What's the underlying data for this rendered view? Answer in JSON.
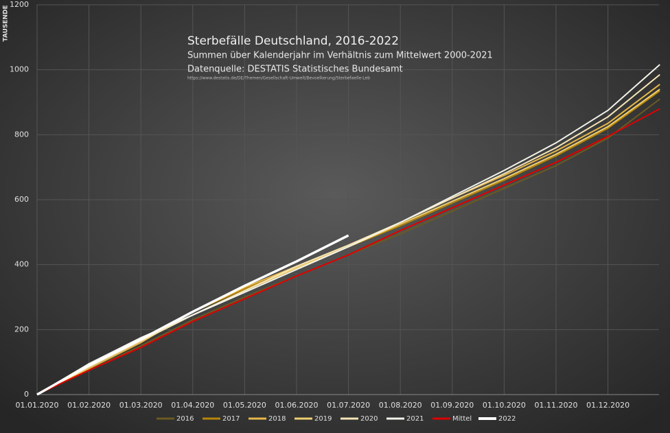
{
  "chart_data": {
    "type": "line",
    "title": "Sterbefälle  Deutschland,  2016-2022",
    "subtitle": "Summen  über  Kalenderjahr  im  Verhältnis  zum  Mittelwert  2000-2021",
    "source": "Datenquelle: DESTATIS  Statistisches  Bundesamt",
    "url": "https://www.destatis.de/DE/Themen/Gesellschaft-Umwelt/Bevoelkerung/Sterbefaelle-Leb",
    "y_label": "TAUSENDE",
    "categories": [
      "01.01.2020",
      "01.02.2020",
      "01.03.2020",
      "01.04.2020",
      "01.05.2020",
      "01.06.2020",
      "01.07.2020",
      "01.08.2020",
      "01.09.2020",
      "01.10.2020",
      "01.11.2020",
      "01.12.2020",
      null
    ],
    "ylim": [
      0,
      1200
    ],
    "yticks": [
      0,
      200,
      400,
      600,
      800,
      1000,
      1200
    ],
    "grid": true,
    "legend": "bottom",
    "series": [
      {
        "name": "2016",
        "color": "#6b5a22",
        "values": [
          0,
          75,
          150,
          230,
          300,
          365,
          430,
          495,
          565,
          635,
          705,
          790,
          910
        ]
      },
      {
        "name": "2017",
        "color": "#b8860b",
        "values": [
          0,
          85,
          170,
          255,
          325,
          390,
          455,
          520,
          590,
          660,
          735,
          820,
          935
        ]
      },
      {
        "name": "2018",
        "color": "#e8b84a",
        "values": [
          0,
          80,
          160,
          255,
          330,
          395,
          460,
          530,
          605,
          675,
          750,
          835,
          955
        ]
      },
      {
        "name": "2019",
        "color": "#f0d070",
        "values": [
          0,
          85,
          165,
          245,
          320,
          390,
          455,
          525,
          595,
          665,
          740,
          825,
          940
        ]
      },
      {
        "name": "2020",
        "color": "#f5e6b8",
        "values": [
          0,
          85,
          165,
          245,
          320,
          395,
          460,
          530,
          605,
          680,
          760,
          855,
          985
        ]
      },
      {
        "name": "2021",
        "color": "#f4f4ec",
        "values": [
          0,
          95,
          175,
          245,
          315,
          385,
          455,
          530,
          610,
          690,
          775,
          875,
          1016
        ]
      },
      {
        "name": "Mittel",
        "color": "#e00000",
        "values": [
          0,
          75,
          145,
          225,
          295,
          365,
          430,
          505,
          575,
          645,
          715,
          795,
          880
        ]
      },
      {
        "name": "2022",
        "color": "#ffffff",
        "values": [
          0,
          90,
          170,
          255,
          335,
          410,
          490,
          null,
          null,
          null,
          null,
          null,
          null
        ]
      }
    ]
  }
}
